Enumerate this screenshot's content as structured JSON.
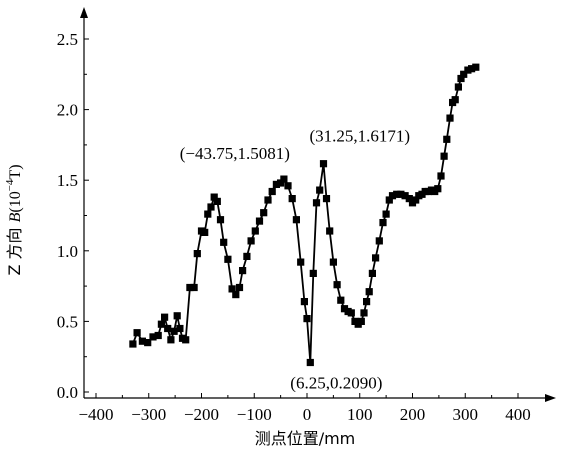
{
  "chart_data": {
    "type": "line",
    "xlabel": "测点位置/mm",
    "ylabel_parts": [
      "Z 方向 ",
      "B",
      "(10",
      "−4",
      "T)"
    ],
    "xlim": [
      -400,
      400
    ],
    "ylim": [
      0,
      2.5
    ],
    "x_ticks": [
      -400,
      -300,
      -200,
      -100,
      0,
      100,
      200,
      300,
      400
    ],
    "x_tick_labels": [
      "−400",
      "−300",
      "−200",
      "−100",
      "0",
      "100",
      "200",
      "300",
      "400"
    ],
    "y_ticks": [
      0,
      0.5,
      1.0,
      1.5,
      2.0,
      2.5
    ],
    "y_tick_labels": [
      "0.0",
      "0.5",
      "1.0",
      "1.5",
      "2.0",
      "2.5"
    ],
    "grid": false,
    "marker": "square",
    "series": [
      {
        "color": "#000000",
        "points": [
          [
            -330,
            0.34
          ],
          [
            -322,
            0.42
          ],
          [
            -312,
            0.36
          ],
          [
            -302,
            0.35
          ],
          [
            -292,
            0.39
          ],
          [
            -282,
            0.4
          ],
          [
            -276,
            0.48
          ],
          [
            -270,
            0.53
          ],
          [
            -264,
            0.45
          ],
          [
            -258,
            0.37
          ],
          [
            -252,
            0.43
          ],
          [
            -246,
            0.54
          ],
          [
            -241,
            0.45
          ],
          [
            -236,
            0.38
          ],
          [
            -230,
            0.37
          ],
          [
            -222,
            0.74
          ],
          [
            -214,
            0.74
          ],
          [
            -208,
            0.98
          ],
          [
            -200,
            1.14
          ],
          [
            -194,
            1.13
          ],
          [
            -188,
            1.26
          ],
          [
            -182,
            1.31
          ],
          [
            -176,
            1.38
          ],
          [
            -170,
            1.35
          ],
          [
            -164,
            1.22
          ],
          [
            -158,
            1.06
          ],
          [
            -150,
            0.94
          ],
          [
            -142,
            0.73
          ],
          [
            -135,
            0.69
          ],
          [
            -128,
            0.74
          ],
          [
            -122,
            0.86
          ],
          [
            -114,
            0.96
          ],
          [
            -106,
            1.07
          ],
          [
            -98,
            1.14
          ],
          [
            -90,
            1.21
          ],
          [
            -82,
            1.27
          ],
          [
            -74,
            1.36
          ],
          [
            -66,
            1.42
          ],
          [
            -58,
            1.47
          ],
          [
            -50,
            1.48
          ],
          [
            -43.75,
            1.5081
          ],
          [
            -36,
            1.46
          ],
          [
            -28,
            1.37
          ],
          [
            -20,
            1.22
          ],
          [
            -12,
            0.92
          ],
          [
            -5,
            0.64
          ],
          [
            0,
            0.52
          ],
          [
            6.25,
            0.209
          ],
          [
            12,
            0.84
          ],
          [
            18,
            1.34
          ],
          [
            24,
            1.43
          ],
          [
            31.25,
            1.6171
          ],
          [
            37,
            1.37
          ],
          [
            43,
            1.14
          ],
          [
            50,
            0.92
          ],
          [
            57,
            0.76
          ],
          [
            64,
            0.65
          ],
          [
            71,
            0.59
          ],
          [
            78,
            0.57
          ],
          [
            84,
            0.56
          ],
          [
            91,
            0.5
          ],
          [
            97,
            0.48
          ],
          [
            103,
            0.5
          ],
          [
            108,
            0.56
          ],
          [
            113,
            0.64
          ],
          [
            118,
            0.71
          ],
          [
            124,
            0.84
          ],
          [
            130,
            0.95
          ],
          [
            137,
            1.07
          ],
          [
            144,
            1.2
          ],
          [
            150,
            1.26
          ],
          [
            156,
            1.36
          ],
          [
            162,
            1.39
          ],
          [
            170,
            1.4
          ],
          [
            178,
            1.4
          ],
          [
            186,
            1.39
          ],
          [
            194,
            1.37
          ],
          [
            200,
            1.34
          ],
          [
            206,
            1.36
          ],
          [
            212,
            1.39
          ],
          [
            218,
            1.4
          ],
          [
            224,
            1.42
          ],
          [
            230,
            1.42
          ],
          [
            236,
            1.43
          ],
          [
            242,
            1.42
          ],
          [
            248,
            1.44
          ],
          [
            254,
            1.53
          ],
          [
            260,
            1.67
          ],
          [
            265,
            1.79
          ],
          [
            271,
            1.94
          ],
          [
            276,
            2.05
          ],
          [
            281,
            2.07
          ],
          [
            287,
            2.16
          ],
          [
            292,
            2.22
          ],
          [
            297,
            2.25
          ],
          [
            305,
            2.28
          ],
          [
            312,
            2.29
          ],
          [
            320,
            2.3
          ]
        ]
      }
    ],
    "annotations": [
      {
        "text": "(−43.75,1.5081)",
        "x": -43.75,
        "y": 1.5081,
        "anchor": "end",
        "dx": 6,
        "dy": -20
      },
      {
        "text": "(31.25,1.6171)",
        "x": 31.25,
        "y": 1.6171,
        "anchor": "start",
        "dx": -14,
        "dy": -22
      },
      {
        "text": "(6.25,0.2090)",
        "x": 6.25,
        "y": 0.209,
        "anchor": "start",
        "dx": -20,
        "dy": 26
      }
    ]
  }
}
